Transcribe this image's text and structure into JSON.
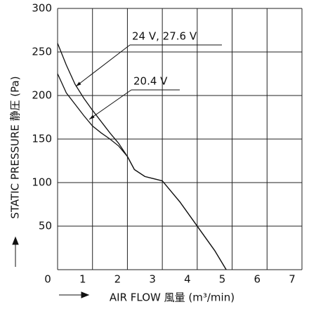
{
  "chart_data": {
    "type": "line",
    "x_label": "AIR FLOW 風量 (m³/min)",
    "y_label": "STATIC PRESSURE 静圧 (Pa)",
    "xlim": [
      0,
      7
    ],
    "xticks": [
      0,
      1,
      2,
      3,
      4,
      5,
      6,
      7
    ],
    "ylim": [
      0,
      300
    ],
    "yticks": [
      0,
      50,
      100,
      150,
      200,
      250,
      300
    ],
    "grid": true,
    "series": [
      {
        "name": "24 V, 27.6 V",
        "color": "#111111",
        "x": [
          0,
          0.25,
          0.5,
          0.75,
          1,
          1.25,
          1.5,
          1.75,
          2,
          2.2,
          2.5,
          3,
          3.5,
          4,
          4.5,
          4.83
        ],
        "values": [
          260,
          235,
          213,
          197,
          183,
          170,
          157,
          145,
          130,
          115,
          107,
          102,
          78,
          50,
          22,
          0
        ]
      },
      {
        "name": "20.4 V",
        "color": "#111111",
        "x": [
          0,
          0.25,
          0.5,
          0.75,
          1,
          1.25,
          1.5,
          1.75,
          2,
          2.2,
          2.5,
          3,
          3.5,
          4,
          4.5,
          4.83
        ],
        "values": [
          225,
          203,
          190,
          177,
          165,
          157,
          150,
          142,
          130,
          115,
          107,
          102,
          78,
          50,
          22,
          0
        ]
      }
    ]
  }
}
